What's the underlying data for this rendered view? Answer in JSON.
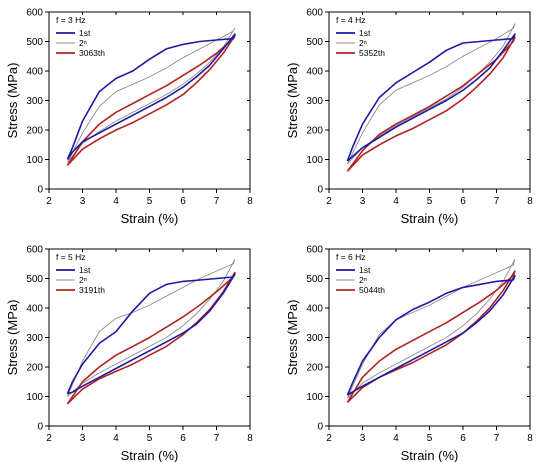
{
  "chart_data": [
    {
      "type": "line",
      "panel_label": "f = 3 Hz",
      "xlabel": "Strain (%)",
      "ylabel": "Stress (MPa)",
      "xlim": [
        2,
        8
      ],
      "ylim": [
        0,
        600
      ],
      "xticks": [
        2,
        3,
        4,
        5,
        6,
        7,
        8
      ],
      "yticks": [
        0,
        100,
        200,
        300,
        400,
        500,
        600
      ],
      "legend_position": "top-left",
      "series": [
        {
          "name": "1st",
          "color": "#1a1aa6",
          "x": [
            2.55,
            2.7,
            3.0,
            3.5,
            4.0,
            4.5,
            5.0,
            5.5,
            6.0,
            6.5,
            7.0,
            7.5,
            7.55,
            7.2,
            6.8,
            6.4,
            6.0,
            5.5,
            5.0,
            4.5,
            4.0,
            3.5,
            3.0,
            2.7,
            2.55
          ],
          "y": [
            100,
            140,
            230,
            330,
            375,
            400,
            440,
            475,
            490,
            500,
            505,
            510,
            525,
            475,
            420,
            380,
            345,
            310,
            280,
            250,
            220,
            190,
            160,
            125,
            100
          ]
        },
        {
          "name": "2ⁿ",
          "color": "#8c8c8c",
          "x": [
            2.55,
            3.0,
            3.5,
            4.0,
            4.5,
            5.0,
            5.5,
            6.0,
            6.5,
            7.0,
            7.5,
            7.55,
            7.2,
            6.8,
            6.4,
            6.0,
            5.5,
            5.0,
            4.5,
            4.0,
            3.5,
            3.0,
            2.55
          ],
          "y": [
            90,
            190,
            280,
            330,
            355,
            380,
            410,
            445,
            475,
            505,
            535,
            545,
            480,
            430,
            390,
            355,
            320,
            290,
            260,
            230,
            195,
            155,
            90
          ]
        },
        {
          "name": "3063th",
          "color": "#b22222",
          "x": [
            2.55,
            3.0,
            3.5,
            4.0,
            4.5,
            5.0,
            5.5,
            6.0,
            6.5,
            7.0,
            7.5,
            7.55,
            7.2,
            6.8,
            6.4,
            6.0,
            5.5,
            5.0,
            4.5,
            4.0,
            3.5,
            3.0,
            2.55
          ],
          "y": [
            80,
            160,
            220,
            260,
            290,
            320,
            350,
            385,
            420,
            460,
            510,
            520,
            460,
            405,
            360,
            320,
            285,
            255,
            225,
            200,
            170,
            135,
            80
          ]
        }
      ]
    },
    {
      "type": "line",
      "panel_label": "f = 4 Hz",
      "xlabel": "Strain (%)",
      "ylabel": "Stress (MPa)",
      "xlim": [
        2,
        8
      ],
      "ylim": [
        0,
        600
      ],
      "xticks": [
        2,
        3,
        4,
        5,
        6,
        7,
        8
      ],
      "yticks": [
        0,
        100,
        200,
        300,
        400,
        500,
        600
      ],
      "legend_position": "top-left",
      "series": [
        {
          "name": "1st",
          "color": "#1a1aa6",
          "x": [
            2.55,
            2.7,
            3.0,
            3.5,
            4.0,
            4.5,
            5.0,
            5.5,
            6.0,
            6.5,
            7.0,
            7.5,
            7.55,
            7.2,
            6.8,
            6.4,
            6.0,
            5.5,
            5.0,
            4.5,
            4.0,
            3.5,
            3.0,
            2.7,
            2.55
          ],
          "y": [
            95,
            140,
            220,
            310,
            360,
            395,
            430,
            470,
            495,
            500,
            505,
            510,
            525,
            470,
            410,
            370,
            335,
            300,
            270,
            240,
            210,
            175,
            140,
            110,
            95
          ]
        },
        {
          "name": "2ⁿ",
          "color": "#8c8c8c",
          "x": [
            2.55,
            3.0,
            3.5,
            4.0,
            4.5,
            5.0,
            5.5,
            6.0,
            6.5,
            7.0,
            7.5,
            7.55,
            7.2,
            6.8,
            6.4,
            6.0,
            5.5,
            5.0,
            4.5,
            4.0,
            3.5,
            3.0,
            2.55
          ],
          "y": [
            85,
            190,
            285,
            335,
            360,
            385,
            415,
            450,
            480,
            510,
            545,
            560,
            485,
            430,
            385,
            345,
            305,
            275,
            245,
            215,
            180,
            140,
            85
          ]
        },
        {
          "name": "5352th",
          "color": "#b22222",
          "x": [
            2.55,
            3.0,
            3.5,
            4.0,
            4.5,
            5.0,
            5.5,
            6.0,
            6.5,
            7.0,
            7.5,
            7.55,
            7.2,
            6.8,
            6.4,
            6.0,
            5.5,
            5.0,
            4.5,
            4.0,
            3.5,
            3.0,
            2.55
          ],
          "y": [
            60,
            130,
            185,
            220,
            250,
            280,
            315,
            350,
            395,
            440,
            500,
            515,
            445,
            390,
            345,
            305,
            265,
            235,
            205,
            180,
            150,
            115,
            60
          ]
        }
      ]
    },
    {
      "type": "line",
      "panel_label": "f = 5 Hz",
      "xlabel": "Strain (%)",
      "ylabel": "Stress (MPa)",
      "xlim": [
        2,
        8
      ],
      "ylim": [
        0,
        600
      ],
      "xticks": [
        2,
        3,
        4,
        5,
        6,
        7,
        8
      ],
      "yticks": [
        0,
        100,
        200,
        300,
        400,
        500,
        600
      ],
      "legend_position": "top-left",
      "series": [
        {
          "name": "1st",
          "color": "#1a1aa6",
          "x": [
            2.55,
            2.7,
            3.0,
            3.5,
            4.0,
            4.5,
            5.0,
            5.5,
            6.0,
            6.5,
            7.0,
            7.5,
            7.55,
            7.2,
            6.8,
            6.4,
            6.0,
            5.5,
            5.0,
            4.5,
            4.0,
            3.5,
            3.0,
            2.7,
            2.55
          ],
          "y": [
            110,
            150,
            210,
            280,
            320,
            390,
            450,
            480,
            490,
            495,
            500,
            505,
            515,
            450,
            390,
            345,
            315,
            285,
            255,
            225,
            195,
            165,
            135,
            115,
            110
          ]
        },
        {
          "name": "2ⁿ",
          "color": "#8c8c8c",
          "x": [
            2.55,
            3.0,
            3.5,
            4.0,
            4.5,
            5.0,
            5.5,
            6.0,
            6.5,
            7.0,
            7.5,
            7.55,
            7.2,
            6.8,
            6.4,
            6.0,
            5.5,
            5.0,
            4.5,
            4.0,
            3.5,
            3.0,
            2.55
          ],
          "y": [
            100,
            220,
            320,
            365,
            385,
            410,
            440,
            470,
            500,
            525,
            550,
            565,
            490,
            430,
            380,
            340,
            300,
            270,
            240,
            210,
            180,
            145,
            100
          ]
        },
        {
          "name": "3191th",
          "color": "#b22222",
          "x": [
            2.55,
            3.0,
            3.5,
            4.0,
            4.5,
            5.0,
            5.5,
            6.0,
            6.5,
            7.0,
            7.5,
            7.55,
            7.2,
            6.8,
            6.4,
            6.0,
            5.5,
            5.0,
            4.5,
            4.0,
            3.5,
            3.0,
            2.55
          ],
          "y": [
            75,
            150,
            200,
            240,
            270,
            300,
            335,
            370,
            410,
            455,
            505,
            520,
            455,
            395,
            350,
            310,
            270,
            240,
            210,
            185,
            160,
            125,
            75
          ]
        }
      ]
    },
    {
      "type": "line",
      "panel_label": "f = 6 Hz",
      "xlabel": "Strain (%)",
      "ylabel": "Stress (MPa)",
      "xlim": [
        2,
        8
      ],
      "ylim": [
        0,
        600
      ],
      "xticks": [
        2,
        3,
        4,
        5,
        6,
        7,
        8
      ],
      "yticks": [
        0,
        100,
        200,
        300,
        400,
        500,
        600
      ],
      "legend_position": "top-left",
      "series": [
        {
          "name": "1st",
          "color": "#1a1aa6",
          "x": [
            2.55,
            2.7,
            3.0,
            3.5,
            4.0,
            4.5,
            5.0,
            5.5,
            6.0,
            6.5,
            7.0,
            7.5,
            7.55,
            7.2,
            6.8,
            6.4,
            6.0,
            5.5,
            5.0,
            4.5,
            4.0,
            3.5,
            3.0,
            2.7,
            2.55
          ],
          "y": [
            105,
            145,
            220,
            300,
            360,
            395,
            420,
            450,
            470,
            480,
            490,
            495,
            510,
            445,
            390,
            350,
            315,
            285,
            255,
            225,
            195,
            165,
            135,
            115,
            105
          ]
        },
        {
          "name": "2ⁿ",
          "color": "#8c8c8c",
          "x": [
            2.55,
            3.0,
            3.5,
            4.0,
            4.5,
            5.0,
            5.5,
            6.0,
            6.5,
            7.0,
            7.5,
            7.55,
            7.2,
            6.8,
            6.4,
            6.0,
            5.5,
            5.0,
            4.5,
            4.0,
            3.5,
            3.0,
            2.55
          ],
          "y": [
            95,
            210,
            310,
            360,
            385,
            410,
            440,
            470,
            495,
            520,
            545,
            565,
            490,
            430,
            380,
            340,
            300,
            270,
            240,
            210,
            180,
            145,
            95
          ]
        },
        {
          "name": "5044th",
          "color": "#b22222",
          "x": [
            2.55,
            3.0,
            3.5,
            4.0,
            4.5,
            5.0,
            5.5,
            6.0,
            6.5,
            7.0,
            7.5,
            7.55,
            7.2,
            6.8,
            6.4,
            6.0,
            5.5,
            5.0,
            4.5,
            4.0,
            3.5,
            3.0,
            2.55
          ],
          "y": [
            80,
            165,
            220,
            260,
            290,
            320,
            350,
            385,
            420,
            460,
            510,
            525,
            460,
            400,
            355,
            315,
            275,
            245,
            215,
            190,
            165,
            130,
            80
          ]
        }
      ]
    }
  ]
}
